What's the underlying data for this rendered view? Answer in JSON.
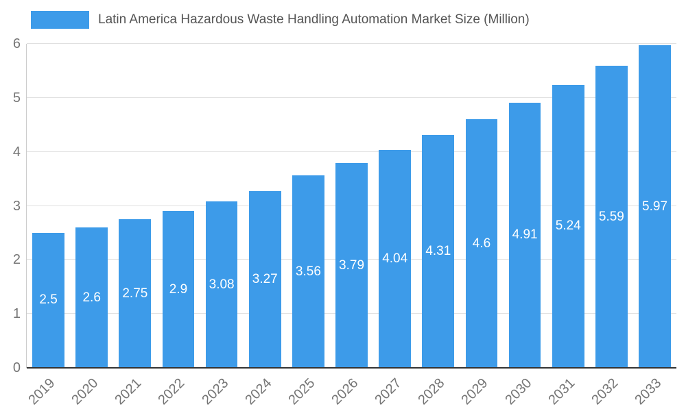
{
  "legend": {
    "title": "Latin America Hazardous Waste Handling Automation Market Size (Million)"
  },
  "chart_data": {
    "type": "bar",
    "title": "Latin America Hazardous Waste Handling Automation Market Size (Million)",
    "categories": [
      "2019",
      "2020",
      "2021",
      "2022",
      "2023",
      "2024",
      "2025",
      "2026",
      "2027",
      "2028",
      "2029",
      "2030",
      "2031",
      "2032",
      "2033"
    ],
    "values": [
      2.5,
      2.6,
      2.75,
      2.9,
      3.08,
      3.27,
      3.56,
      3.79,
      4.04,
      4.31,
      4.6,
      4.91,
      5.24,
      5.59,
      5.97
    ],
    "value_labels": [
      "2.5",
      "2.6",
      "2.75",
      "2.9",
      "3.08",
      "3.27",
      "3.56",
      "3.79",
      "4.04",
      "4.31",
      "4.6",
      "4.91",
      "5.24",
      "5.59",
      "5.97"
    ],
    "xlabel": "",
    "ylabel": "",
    "ylim": [
      0,
      6
    ],
    "yticks": [
      0,
      1,
      2,
      3,
      4,
      5,
      6
    ],
    "grid": true,
    "legend_position": "top-left"
  },
  "colors": {
    "bar": "#3d9be9",
    "grid": "#e0e0e0",
    "axis": "#333333",
    "tick_label": "#757575",
    "title": "#545454",
    "value_label": "#ffffff",
    "background": "#ffffff"
  }
}
